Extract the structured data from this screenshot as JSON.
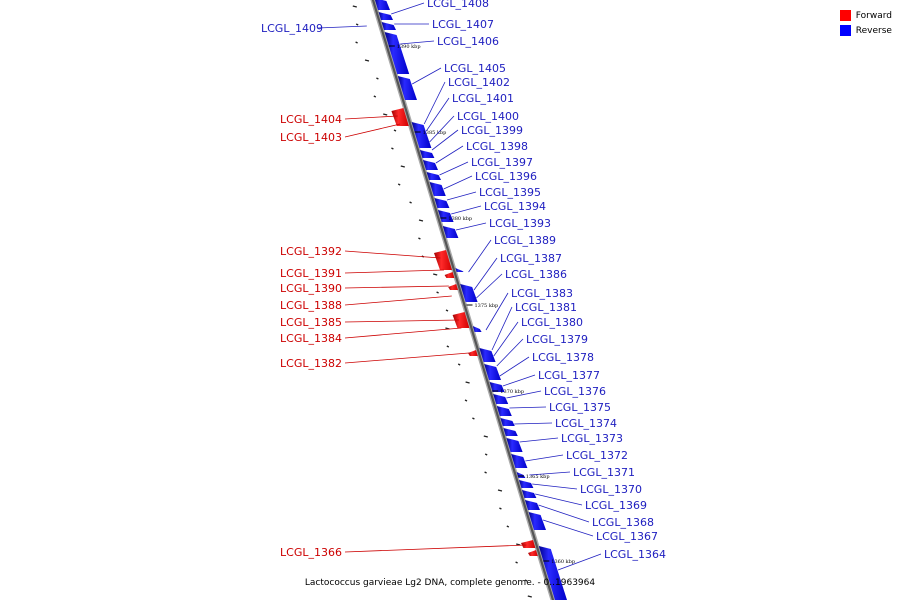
{
  "legend": {
    "forward_label": "Forward",
    "reverse_label": "Reverse",
    "forward_color": "#ff0000",
    "reverse_color": "#0000ff"
  },
  "caption": "Lactococcus garvieae Lg2 DNA, complete genome. - 0..1963964",
  "ticks": [
    "1390 kbp",
    "1385 kbp",
    "1380 kbp",
    "1375 kbp",
    "1370 kbp",
    "1365 kbp",
    "1360 kbp"
  ],
  "forward_genes": [
    "LCGL_1404",
    "LCGL_1403",
    "LCGL_1392",
    "LCGL_1391",
    "LCGL_1390",
    "LCGL_1388",
    "LCGL_1385",
    "LCGL_1384",
    "LCGL_1382",
    "LCGL_1366"
  ],
  "reverse_genes": [
    "LCGL_1409",
    "LCGL_1408",
    "LCGL_1407",
    "LCGL_1406",
    "LCGL_1405",
    "LCGL_1402",
    "LCGL_1401",
    "LCGL_1400",
    "LCGL_1399",
    "LCGL_1398",
    "LCGL_1397",
    "LCGL_1396",
    "LCGL_1395",
    "LCGL_1394",
    "LCGL_1393",
    "LCGL_1389",
    "LCGL_1387",
    "LCGL_1386",
    "LCGL_1383",
    "LCGL_1381",
    "LCGL_1380",
    "LCGL_1379",
    "LCGL_1378",
    "LCGL_1377",
    "LCGL_1376",
    "LCGL_1375",
    "LCGL_1374",
    "LCGL_1373",
    "LCGL_1372",
    "LCGL_1371",
    "LCGL_1370",
    "LCGL_1369",
    "LCGL_1368",
    "LCGL_1367",
    "LCGL_1364"
  ]
}
